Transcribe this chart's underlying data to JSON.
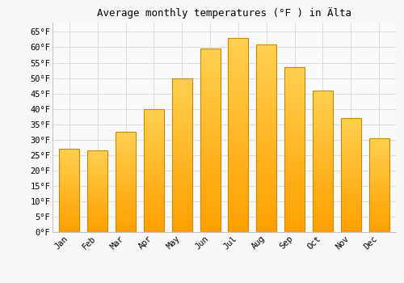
{
  "title": "Average monthly temperatures (°F ) in Älta",
  "months": [
    "Jan",
    "Feb",
    "Mar",
    "Apr",
    "May",
    "Jun",
    "Jul",
    "Aug",
    "Sep",
    "Oct",
    "Nov",
    "Dec"
  ],
  "values": [
    27.0,
    26.5,
    32.5,
    40.0,
    50.0,
    59.5,
    63.0,
    61.0,
    53.5,
    46.0,
    37.0,
    30.5
  ],
  "bar_color_top": "#FFD050",
  "bar_color_bottom": "#FFA000",
  "bar_edge_color": "#CC8800",
  "ylim": [
    0,
    68
  ],
  "yticks": [
    0,
    5,
    10,
    15,
    20,
    25,
    30,
    35,
    40,
    45,
    50,
    55,
    60,
    65
  ],
  "ytick_labels": [
    "0°F",
    "5°F",
    "10°F",
    "15°F",
    "20°F",
    "25°F",
    "30°F",
    "35°F",
    "40°F",
    "45°F",
    "50°F",
    "55°F",
    "60°F",
    "65°F"
  ],
  "bg_color": "#F8F8F8",
  "plot_bg_color": "#FAFAFA",
  "grid_color": "#DDDDDD",
  "title_fontsize": 9,
  "tick_fontsize": 7.5,
  "font_family": "monospace"
}
